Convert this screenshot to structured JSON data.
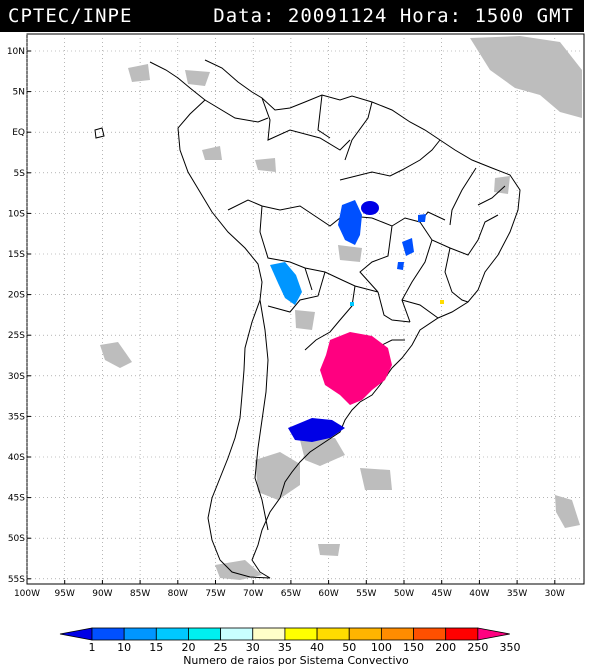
{
  "header": {
    "source": "CPTEC/INPE",
    "date_time": "Data: 20091124 Hora: 1500 GMT"
  },
  "map": {
    "lat_ticks": [
      "10N",
      "5N",
      "EQ",
      "5S",
      "10S",
      "15S",
      "20S",
      "25S",
      "30S",
      "35S",
      "40S",
      "45S",
      "50S",
      "55S"
    ],
    "lon_ticks": [
      "100W",
      "95W",
      "90W",
      "85W",
      "80W",
      "75W",
      "70W",
      "65W",
      "60W",
      "55W",
      "50W",
      "45W",
      "40W",
      "35W",
      "30W"
    ],
    "grid": true,
    "cloud_color": "#bdbdbd",
    "border_color": "#000000"
  },
  "colorbar": {
    "levels": [
      "1",
      "10",
      "15",
      "20",
      "25",
      "30",
      "35",
      "40",
      "50",
      "100",
      "150",
      "200",
      "250",
      "350"
    ],
    "colors": [
      "#0000e6",
      "#0050ff",
      "#0096ff",
      "#00c8ff",
      "#00f0f0",
      "#c8ffff",
      "#ffffc8",
      "#ffff00",
      "#ffdc00",
      "#ffb400",
      "#ff8c00",
      "#ff5000",
      "#ff0000",
      "#ff0080"
    ],
    "caption": "Numero de raios por Sistema Convectivo"
  }
}
